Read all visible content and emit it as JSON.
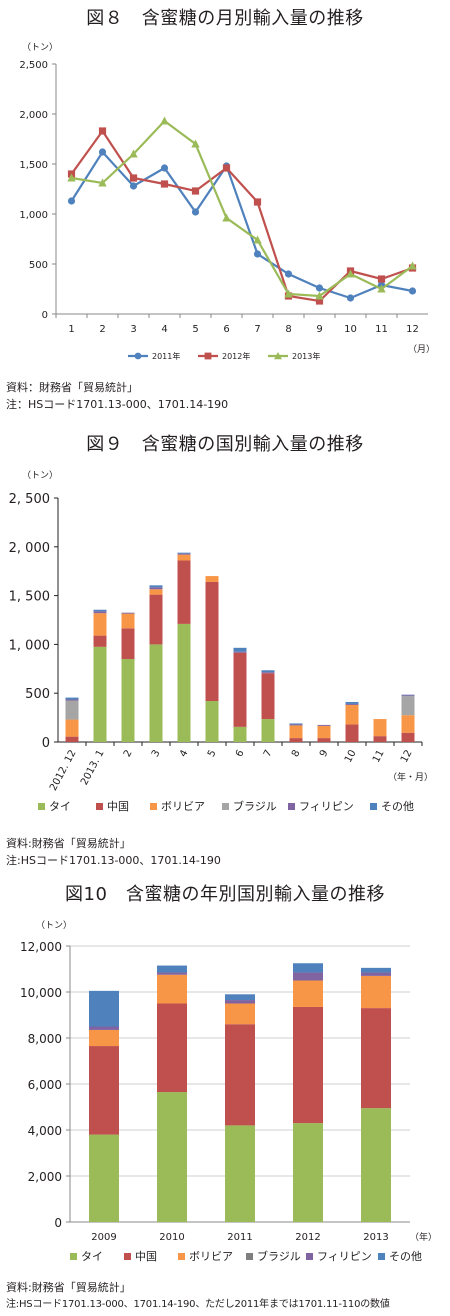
{
  "colors": {
    "y2011": "#4f81bd",
    "y2012": "#c0504d",
    "y2013": "#9bbb59",
    "thai": "#9bbb59",
    "china": "#c0504d",
    "bolivia": "#f79646",
    "brazil": "#a5a5a5",
    "philippines": "#8064a2",
    "other": "#4f81bd",
    "brazil2": "#7f7f7f"
  },
  "fig8": {
    "title": "図８　含蜜糖の月別輸入量の推移",
    "unit_label": "（トン）",
    "x_unit": "（月）",
    "source": "資料：財務省「貿易統計」",
    "note": "注：HSコード1701.13-000、1701.14-190"
  },
  "fig9": {
    "title": "図９　含蜜糖の国別輸入量の推移",
    "unit_label": "（トン）",
    "x_unit": "（年・月）",
    "source": "資料:財務省「貿易統計」",
    "note": "注:HSコード1701.13-000、1701.14-190"
  },
  "fig10": {
    "title": "図10　含蜜糖の年別国別輸入量の推移",
    "unit_label": "（トン）",
    "x_unit": "（年）",
    "source": "資料:財務省「貿易統計」",
    "note": "注:HSコード1701.13-000、1701.14-190、ただし2011年までは1701.11-110の数値"
  },
  "chart_data": [
    {
      "type": "line",
      "categories": [
        "1",
        "2",
        "3",
        "4",
        "5",
        "6",
        "7",
        "8",
        "9",
        "10",
        "11",
        "12"
      ],
      "ylim": [
        0,
        2500
      ],
      "yticks": [
        "0",
        "500",
        "1,000",
        "1,500",
        "2,000",
        "2,500"
      ],
      "series": [
        {
          "name": "2011年",
          "values": [
            1130,
            1620,
            1280,
            1460,
            1020,
            1480,
            600,
            400,
            260,
            160,
            290,
            230
          ]
        },
        {
          "name": "2012年",
          "values": [
            1400,
            1830,
            1360,
            1300,
            1230,
            1460,
            1120,
            180,
            130,
            430,
            350,
            460
          ]
        },
        {
          "name": "2013年",
          "values": [
            1360,
            1310,
            1600,
            1930,
            1700,
            960,
            740,
            200,
            180,
            400,
            250,
            480
          ]
        }
      ],
      "legend": "bottom",
      "grid": false
    },
    {
      "type": "bar",
      "stacked": true,
      "categories": [
        "2012. 12",
        "2013. 1",
        "2",
        "3",
        "4",
        "5",
        "6",
        "7",
        "8",
        "9",
        "10",
        "11",
        "12"
      ],
      "ylim": [
        0,
        2500
      ],
      "yticks": [
        "0",
        "500",
        "1, 000",
        "1, 500",
        "2, 000",
        "2, 500"
      ],
      "series": [
        {
          "name": "タイ",
          "values": [
            0,
            975,
            850,
            1000,
            1210,
            420,
            155,
            235,
            0,
            0,
            0,
            0,
            0
          ]
        },
        {
          "name": "中国",
          "values": [
            55,
            115,
            315,
            510,
            650,
            1220,
            760,
            470,
            40,
            40,
            180,
            60,
            95
          ]
        },
        {
          "name": "ボリビア",
          "values": [
            175,
            230,
            150,
            55,
            60,
            60,
            0,
            0,
            130,
            125,
            200,
            175,
            180
          ]
        },
        {
          "name": "ブラジル",
          "values": [
            195,
            0,
            0,
            0,
            0,
            0,
            0,
            0,
            0,
            0,
            0,
            0,
            195
          ]
        },
        {
          "name": "フィリピン",
          "values": [
            10,
            20,
            10,
            20,
            10,
            0,
            10,
            10,
            10,
            10,
            10,
            0,
            10
          ]
        },
        {
          "name": "その他",
          "values": [
            20,
            15,
            0,
            20,
            10,
            0,
            40,
            20,
            10,
            0,
            20,
            0,
            5
          ]
        }
      ],
      "legend": "bottom",
      "grid": false
    },
    {
      "type": "bar",
      "stacked": true,
      "categories": [
        "2009",
        "2010",
        "2011",
        "2012",
        "2013"
      ],
      "ylim": [
        0,
        12000
      ],
      "yticks": [
        "0",
        "2,000",
        "4,000",
        "6,000",
        "8,000",
        "10,000",
        "12,000"
      ],
      "series": [
        {
          "name": "タイ",
          "values": [
            3800,
            5650,
            4200,
            4300,
            4950
          ]
        },
        {
          "name": "中国",
          "values": [
            3850,
            3850,
            4400,
            5050,
            4350
          ]
        },
        {
          "name": "ボリビア",
          "values": [
            700,
            1250,
            900,
            1150,
            1400
          ]
        },
        {
          "name": "ブラジル",
          "values": [
            0,
            0,
            0,
            0,
            0
          ]
        },
        {
          "name": "フィリピン",
          "values": [
            150,
            100,
            150,
            350,
            150
          ]
        },
        {
          "name": "その他",
          "values": [
            1550,
            300,
            250,
            400,
            200
          ]
        }
      ],
      "legend": "bottom",
      "grid": true
    }
  ]
}
